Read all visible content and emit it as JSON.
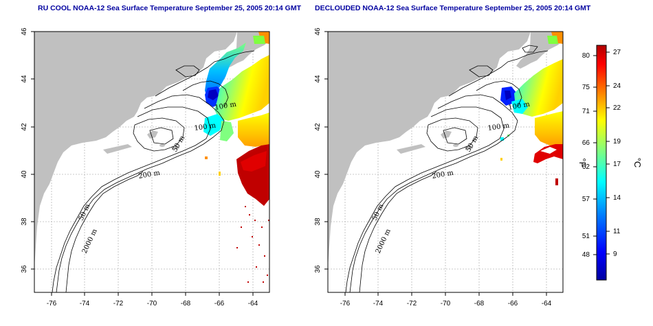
{
  "panels": [
    {
      "title": "RU COOL NOAA-12 Sea Surface Temperature September 25, 2005 20:14 GMT",
      "contour_labels": [
        "100 m",
        "100 m",
        "50 m",
        "200 m",
        "50 m",
        "2000 m"
      ]
    },
    {
      "title": "DECLOUDED NOAA-12 Sea Surface Temperature September 25, 2005 20:14 GMT",
      "contour_labels": [
        "100 m",
        "100 m",
        "50 m",
        "200 m",
        "50 m",
        "2000 m"
      ]
    }
  ],
  "axes": {
    "x_ticks": [
      "-76",
      "-74",
      "-72",
      "-70",
      "-68",
      "-66",
      "-64"
    ],
    "y_ticks": [
      "46",
      "44",
      "42",
      "40",
      "38",
      "36"
    ]
  },
  "colorbar": {
    "fahrenheit_ticks": [
      "80",
      "75",
      "71",
      "66",
      "62",
      "57",
      "51",
      "48"
    ],
    "celsius_ticks": [
      "27",
      "24",
      "22",
      "19",
      "17",
      "14",
      "11",
      "9"
    ],
    "fahrenheit_unit": "°F",
    "celsius_unit": "°C",
    "colors": [
      "#0000a0",
      "#0000ff",
      "#0080ff",
      "#00ffff",
      "#80ff80",
      "#ffff00",
      "#ff8000",
      "#ff0000",
      "#b00000"
    ]
  },
  "colors": {
    "land": "#c0c0c0",
    "grid": "#b0b0b0",
    "title": "#0000a0"
  }
}
